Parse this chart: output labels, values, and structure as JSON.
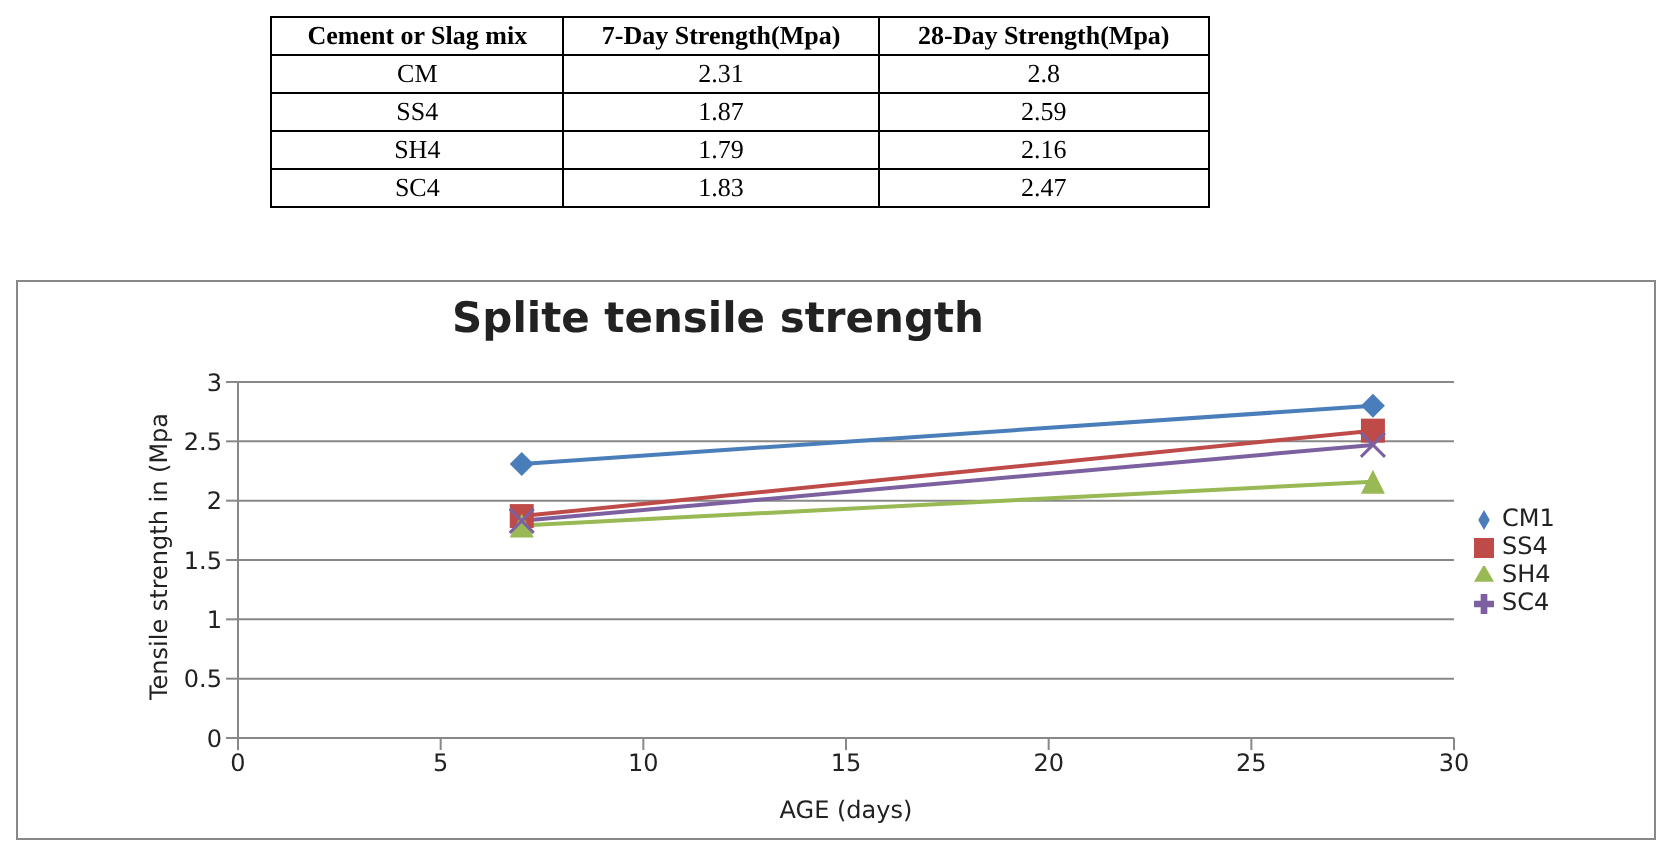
{
  "chart_data": {
    "type": "line",
    "title": "Splite tensile strength",
    "xlabel": "AGE (days)",
    "ylabel": "Tensile strength in (Mpa",
    "annotations": [
      "Cement or Slag mix",
      "7-Day Strength(Mpa)",
      "28-Day Strength(Mpa)",
      "CM",
      "2.31",
      "2.8",
      "SS4",
      "1.87",
      "2.59",
      "SH4",
      "1.79",
      "2.16",
      "SC4",
      "1.83",
      "2.47"
    ],
    "x": [
      7,
      28
    ],
    "series": [
      {
        "name": "CM1",
        "color": "#4a7ebb",
        "values": [
          2.31,
          2.8
        ],
        "marker": "diamond"
      },
      {
        "name": "SS4",
        "color": "#be4b48",
        "values": [
          1.87,
          2.59
        ],
        "marker": "square"
      },
      {
        "name": "SH4",
        "color": "#98b954",
        "values": [
          1.79,
          2.16
        ],
        "marker": "triangle"
      },
      {
        "name": "SC4",
        "color": "#7d60a0",
        "values": [
          1.83,
          2.47
        ],
        "marker": "cross"
      }
    ],
    "xlim": [
      0,
      30
    ],
    "xticks": [
      0,
      5,
      10,
      15,
      20,
      25,
      30
    ],
    "ylim": [
      0,
      3
    ],
    "yticks": [
      0,
      0.5,
      1,
      1.5,
      2,
      2.5,
      3
    ],
    "grid": "y",
    "legend": "right"
  }
}
